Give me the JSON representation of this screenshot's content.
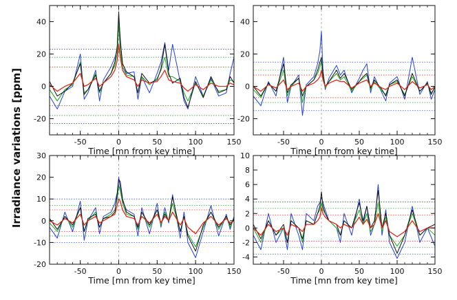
{
  "figure": {
    "shared_ylabel": "Irradiance variations [ppm]"
  },
  "colors": {
    "black": "#111111",
    "blue": "#1f3fe0",
    "green": "#18a81a",
    "red": "#e0281a",
    "ref_line": "#999999"
  },
  "chart_data": [
    {
      "type": "line",
      "id": "top-left",
      "xlabel": "Time [mn from key time]",
      "xlim": [
        -90,
        150
      ],
      "ylim": [
        -30,
        50
      ],
      "xticks": [
        -50,
        0,
        50,
        100,
        150
      ],
      "yticks": [
        -20,
        0,
        20,
        40
      ],
      "key_time": 0,
      "thresholds": [
        {
          "color": "blue",
          "value": 23
        },
        {
          "color": "blue",
          "value": -23
        },
        {
          "color": "green",
          "value": 18
        },
        {
          "color": "green",
          "value": -18
        },
        {
          "color": "red",
          "value": 12
        },
        {
          "color": "red",
          "value": -12
        }
      ],
      "series_x": [
        -90,
        -80,
        -70,
        -60,
        -50,
        -45,
        -40,
        -30,
        -25,
        -20,
        -10,
        -5,
        -2,
        0,
        2,
        5,
        10,
        20,
        25,
        30,
        40,
        50,
        55,
        60,
        65,
        70,
        80,
        85,
        90,
        100,
        110,
        120,
        130,
        140,
        145,
        150
      ],
      "series": [
        {
          "name": "black",
          "color": "black",
          "values": [
            3,
            -6,
            -3,
            2,
            14,
            -5,
            -2,
            7,
            -3,
            2,
            8,
            15,
            25,
            46,
            28,
            14,
            9,
            6,
            -4,
            8,
            2,
            4,
            11,
            26,
            8,
            2,
            5,
            -7,
            -13,
            3,
            -7,
            6,
            -4,
            -2,
            6,
            2
          ]
        },
        {
          "name": "blue",
          "color": "blue",
          "values": [
            -6,
            -14,
            -3,
            0,
            20,
            -8,
            -4,
            10,
            -9,
            4,
            12,
            18,
            22,
            43,
            30,
            12,
            8,
            9,
            -8,
            6,
            -4,
            8,
            15,
            27,
            10,
            26,
            3,
            -9,
            -14,
            6,
            -6,
            5,
            -6,
            -4,
            8,
            18
          ]
        },
        {
          "name": "green",
          "color": "green",
          "values": [
            -2,
            -9,
            -2,
            1,
            15,
            -4,
            -2,
            8,
            -4,
            2,
            8,
            13,
            20,
            39,
            22,
            12,
            7,
            6,
            -4,
            6,
            1,
            5,
            10,
            18,
            6,
            6,
            3,
            -4,
            -9,
            2,
            -6,
            4,
            -3,
            -2,
            4,
            3
          ]
        },
        {
          "name": "red",
          "color": "red",
          "values": [
            1,
            -3,
            0,
            2,
            8,
            0,
            1,
            5,
            0,
            2,
            6,
            10,
            16,
            26,
            18,
            10,
            6,
            4,
            0,
            4,
            2,
            3,
            6,
            10,
            4,
            3,
            2,
            -1,
            -3,
            1,
            -2,
            2,
            0,
            0,
            2,
            1
          ]
        }
      ]
    },
    {
      "type": "line",
      "id": "top-right",
      "xlabel": "Time [mn from key time]",
      "xlim": [
        -90,
        150
      ],
      "ylim": [
        -30,
        50
      ],
      "xticks": [
        -50,
        0,
        50,
        100,
        150
      ],
      "yticks": [
        -20,
        0,
        20,
        40
      ],
      "key_time": 0,
      "thresholds": [
        {
          "color": "blue",
          "value": 15
        },
        {
          "color": "blue",
          "value": -15
        },
        {
          "color": "green",
          "value": 10
        },
        {
          "color": "green",
          "value": -10
        },
        {
          "color": "red",
          "value": 7
        },
        {
          "color": "red",
          "value": -7
        }
      ],
      "series_x": [
        -90,
        -80,
        -70,
        -60,
        -50,
        -45,
        -40,
        -30,
        -25,
        -20,
        -10,
        -5,
        -2,
        0,
        2,
        5,
        10,
        20,
        25,
        30,
        40,
        50,
        55,
        60,
        65,
        70,
        80,
        85,
        90,
        100,
        110,
        120,
        130,
        140,
        145,
        150
      ],
      "series": [
        {
          "name": "black",
          "color": "black",
          "values": [
            0,
            -6,
            2,
            -3,
            14,
            -4,
            1,
            5,
            -6,
            0,
            4,
            10,
            15,
            18,
            8,
            0,
            3,
            10,
            5,
            8,
            -2,
            3,
            6,
            8,
            -1,
            4,
            -2,
            -6,
            1,
            4,
            -6,
            8,
            -3,
            2,
            -5,
            0
          ]
        },
        {
          "name": "blue",
          "color": "blue",
          "values": [
            -6,
            -12,
            3,
            -6,
            18,
            -10,
            0,
            7,
            -18,
            1,
            6,
            14,
            22,
            34,
            10,
            -2,
            5,
            13,
            7,
            10,
            -4,
            5,
            10,
            14,
            -4,
            6,
            -4,
            -9,
            2,
            6,
            -8,
            18,
            -5,
            3,
            -8,
            -2
          ]
        },
        {
          "name": "green",
          "color": "green",
          "values": [
            -2,
            -7,
            2,
            -3,
            10,
            -6,
            0,
            5,
            -10,
            0,
            4,
            8,
            12,
            16,
            6,
            -1,
            3,
            8,
            4,
            6,
            -3,
            3,
            5,
            7,
            -2,
            3,
            -3,
            -5,
            1,
            3,
            -5,
            6,
            -3,
            2,
            -4,
            -1
          ]
        },
        {
          "name": "red",
          "color": "red",
          "values": [
            0,
            -3,
            1,
            -1,
            4,
            -2,
            0,
            2,
            -3,
            0,
            2,
            4,
            6,
            10,
            4,
            0,
            2,
            4,
            3,
            3,
            -1,
            2,
            3,
            4,
            0,
            2,
            -1,
            -2,
            0,
            2,
            -2,
            3,
            -1,
            1,
            -2,
            0
          ]
        }
      ]
    },
    {
      "type": "line",
      "id": "bottom-left",
      "xlabel": "Time [mn from key time]",
      "xlim": [
        -90,
        150
      ],
      "ylim": [
        -20,
        30
      ],
      "xticks": [
        -50,
        0,
        50,
        100,
        150
      ],
      "yticks": [
        -20,
        -10,
        0,
        10,
        20,
        30
      ],
      "key_time": 0,
      "thresholds": [
        {
          "color": "blue",
          "value": 10
        },
        {
          "color": "blue",
          "value": -10
        },
        {
          "color": "green",
          "value": 7
        },
        {
          "color": "green",
          "value": -7
        },
        {
          "color": "red",
          "value": 5
        },
        {
          "color": "red",
          "value": -5
        }
      ],
      "series_x": [
        -90,
        -80,
        -70,
        -60,
        -50,
        -45,
        -40,
        -30,
        -25,
        -20,
        -10,
        -5,
        -2,
        0,
        2,
        5,
        10,
        20,
        25,
        30,
        40,
        50,
        55,
        60,
        65,
        70,
        80,
        85,
        90,
        100,
        110,
        120,
        130,
        140,
        145,
        150
      ],
      "series": [
        {
          "name": "black",
          "color": "black",
          "values": [
            1,
            -4,
            2,
            -2,
            6,
            -5,
            1,
            3,
            -3,
            1,
            2,
            4,
            12,
            19,
            18,
            10,
            4,
            2,
            -3,
            4,
            -2,
            5,
            -1,
            3,
            0,
            11,
            -5,
            2,
            -7,
            -14,
            -2,
            4,
            -3,
            2,
            -2,
            1
          ]
        },
        {
          "name": "blue",
          "color": "blue",
          "values": [
            -3,
            -8,
            4,
            -5,
            9,
            -9,
            0,
            6,
            -6,
            2,
            4,
            8,
            13,
            20,
            15,
            9,
            5,
            3,
            -7,
            6,
            -6,
            8,
            -3,
            6,
            -1,
            12,
            -8,
            4,
            -10,
            -17,
            -5,
            7,
            -7,
            3,
            -4,
            2
          ]
        },
        {
          "name": "green",
          "color": "green",
          "values": [
            -1,
            -5,
            2,
            -3,
            6,
            -5,
            0,
            4,
            -3,
            1,
            3,
            5,
            10,
            16,
            14,
            8,
            3,
            2,
            -4,
            4,
            -3,
            5,
            -2,
            4,
            0,
            8,
            -5,
            2,
            -6,
            -12,
            -3,
            4,
            -4,
            2,
            -3,
            1
          ]
        },
        {
          "name": "red",
          "color": "red",
          "values": [
            0,
            -2,
            1,
            -1,
            3,
            -2,
            0,
            2,
            -1,
            0,
            2,
            3,
            7,
            10,
            9,
            5,
            2,
            1,
            -2,
            2,
            -1,
            3,
            -1,
            2,
            0,
            4,
            -2,
            1,
            -3,
            -6,
            -1,
            2,
            -2,
            1,
            -1,
            0
          ]
        }
      ]
    },
    {
      "type": "line",
      "id": "bottom-right",
      "xlabel": "Time [mn from key time]",
      "xlim": [
        -90,
        150
      ],
      "ylim": [
        -5,
        10
      ],
      "xticks": [
        -50,
        0,
        50,
        100,
        150
      ],
      "yticks": [
        -4,
        -2,
        0,
        2,
        4,
        6,
        8,
        10
      ],
      "key_time": 0,
      "thresholds": [
        {
          "color": "blue",
          "value": 3.6
        },
        {
          "color": "blue",
          "value": -3.6
        },
        {
          "color": "green",
          "value": 2.7
        },
        {
          "color": "green",
          "value": -2.7
        },
        {
          "color": "red",
          "value": 1.8
        },
        {
          "color": "red",
          "value": -1.8
        }
      ],
      "series_x": [
        -90,
        -80,
        -70,
        -60,
        -50,
        -45,
        -40,
        -30,
        -25,
        -20,
        -10,
        -5,
        -2,
        0,
        2,
        5,
        10,
        20,
        25,
        30,
        40,
        50,
        55,
        60,
        65,
        70,
        75,
        80,
        85,
        90,
        100,
        110,
        120,
        130,
        140,
        150
      ],
      "series": [
        {
          "name": "black",
          "color": "black",
          "values": [
            0.5,
            -1.5,
            1,
            -1,
            0.5,
            -2,
            1,
            0,
            -1.5,
            1,
            0.5,
            2,
            3,
            5,
            3,
            2,
            1,
            0.5,
            -1,
            1,
            0,
            3.5,
            1,
            3,
            0,
            1,
            5.2,
            0,
            2,
            -1,
            -3.5,
            -1,
            2.5,
            -1,
            0,
            0.5
          ]
        },
        {
          "name": "blue",
          "color": "blue",
          "values": [
            -1,
            -3,
            2,
            -2,
            0,
            -3,
            2,
            -1,
            -3,
            2,
            1,
            3,
            3.5,
            4.2,
            3.5,
            2.5,
            1,
            0,
            -2,
            2,
            -1,
            4,
            0.5,
            3,
            -1,
            0.5,
            6,
            -1,
            2.5,
            -2,
            -4.2,
            -2,
            3,
            -2,
            0,
            -2.5
          ]
        },
        {
          "name": "green",
          "color": "green",
          "values": [
            0,
            -2,
            1,
            -1,
            0,
            -2,
            1,
            0,
            -2,
            1,
            0.5,
            2,
            2.5,
            3.5,
            2.5,
            2,
            1,
            0,
            -1,
            1,
            0,
            2.5,
            0.5,
            2,
            -0.5,
            0.5,
            3.5,
            -0.5,
            1.5,
            -1,
            -2.5,
            -1,
            2,
            -1,
            0,
            -1
          ]
        },
        {
          "name": "red",
          "color": "red",
          "values": [
            0,
            -1,
            0.5,
            -0.5,
            0,
            -1,
            0.5,
            0,
            -0.5,
            0.5,
            0.5,
            1,
            1.5,
            2.8,
            2,
            1.5,
            1,
            0.5,
            0,
            0.5,
            0,
            1.5,
            0.5,
            1.2,
            0,
            0.5,
            2,
            0,
            1,
            -0.5,
            -1.2,
            -0.5,
            1,
            -0.5,
            0,
            0
          ]
        }
      ]
    }
  ]
}
